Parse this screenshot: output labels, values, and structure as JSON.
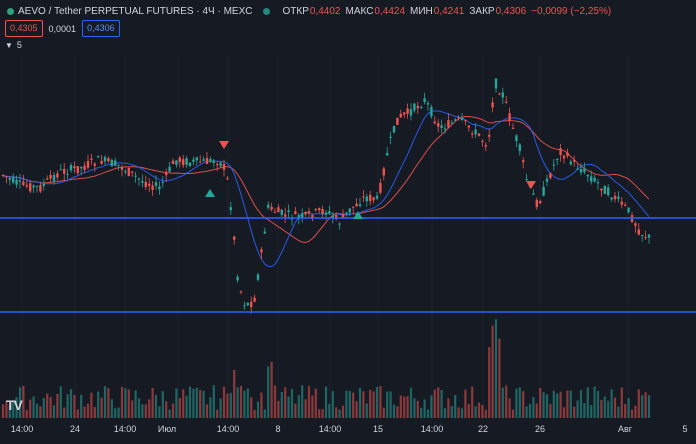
{
  "header": {
    "title": "AEVO / Tether PERPETUAL FUTURES · 4Ч · MEXC",
    "ohlc": [
      {
        "key": "ОТКР",
        "value": "0,4402"
      },
      {
        "key": "МАКС",
        "value": "0,4424"
      },
      {
        "key": "МИН",
        "value": "0,4241"
      },
      {
        "key": "ЗАКР",
        "value": "0,4306"
      },
      {
        "key": "",
        "value": "−0,0099 (−2,25%)"
      }
    ]
  },
  "trade": {
    "sell_price": "0,4305",
    "spread": "0,0001",
    "buy_price": "0,4306"
  },
  "indicators": {
    "count": "5"
  },
  "logo": {
    "text": "TV"
  },
  "colors": {
    "background": "#161a23",
    "up": "#26a69a",
    "down": "#ef5350",
    "ma_fast": "#2962ff",
    "ma_slow": "#ef5350",
    "level_line": "#2962ff"
  },
  "chart_data": {
    "type": "candlestick",
    "x_tick_labels": [
      "14:00",
      "24",
      "14:00",
      "Июл",
      "14:00",
      "8",
      "14:00",
      "15",
      "14:00",
      "22",
      "26",
      "Авг",
      "5"
    ],
    "horizontal_levels": [
      "upper",
      "lower"
    ],
    "moving_averages": [
      "blue",
      "red"
    ],
    "markers": [
      {
        "type": "sell",
        "color": "#ef5350"
      },
      {
        "type": "buy",
        "color": "#26a69a"
      },
      {
        "type": "buy",
        "color": "#26a69a"
      },
      {
        "type": "sell",
        "color": "#ef5350"
      }
    ]
  }
}
